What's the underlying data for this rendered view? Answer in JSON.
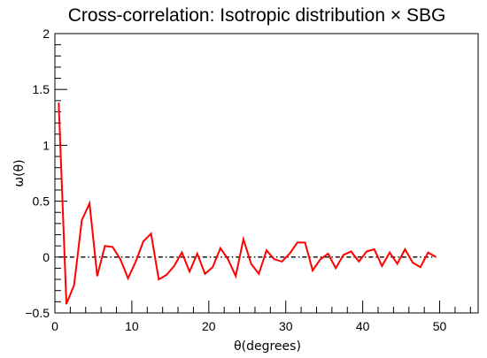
{
  "chart_data": {
    "type": "line",
    "title": "Cross-correlation: Isotropic distribution × SBG",
    "xlabel": "θ(degrees)",
    "ylabel": "ω(θ)",
    "xlim": [
      0,
      55
    ],
    "ylim": [
      -0.5,
      2
    ],
    "x_ticks": [
      0,
      10,
      20,
      30,
      40,
      50
    ],
    "y_ticks": [
      -0.5,
      0,
      0.5,
      1,
      1.5,
      2
    ],
    "x_tick_labels": [
      "0",
      "10",
      "20",
      "30",
      "40",
      "50"
    ],
    "y_tick_labels": [
      "−0.5",
      "0",
      "0.5",
      "1",
      "1.5",
      "2"
    ],
    "grid": false,
    "reference_line": {
      "y": 0,
      "style": "dash-dot"
    },
    "series": [
      {
        "color": "#ff0000",
        "x": [
          0.5,
          1.5,
          2.5,
          3.5,
          4.5,
          5.5,
          6.5,
          7.5,
          8.5,
          9.5,
          10.5,
          11.5,
          12.5,
          13.5,
          14.5,
          15.5,
          16.5,
          17.5,
          18.5,
          19.5,
          20.5,
          21.5,
          22.5,
          23.5,
          24.5,
          25.5,
          26.5,
          27.5,
          28.5,
          29.5,
          30.5,
          31.5,
          32.5,
          33.5,
          34.5,
          35.5,
          36.5,
          37.5,
          38.5,
          39.5,
          40.5,
          41.5,
          42.5,
          43.5,
          44.5,
          45.5,
          46.5,
          47.5,
          48.5,
          49.5
        ],
        "y": [
          1.38,
          -0.42,
          -0.25,
          0.33,
          0.48,
          -0.17,
          0.1,
          0.09,
          -0.02,
          -0.19,
          -0.04,
          0.14,
          0.21,
          -0.2,
          -0.16,
          -0.08,
          0.04,
          -0.13,
          0.03,
          -0.15,
          -0.09,
          0.08,
          -0.02,
          -0.17,
          0.16,
          -0.06,
          -0.15,
          0.06,
          -0.02,
          -0.04,
          0.03,
          0.13,
          0.13,
          -0.12,
          -0.02,
          0.03,
          -0.1,
          0.02,
          0.05,
          -0.04,
          0.05,
          0.07,
          -0.08,
          0.04,
          -0.06,
          0.07,
          -0.05,
          -0.09,
          0.04,
          0.0
        ]
      }
    ]
  }
}
